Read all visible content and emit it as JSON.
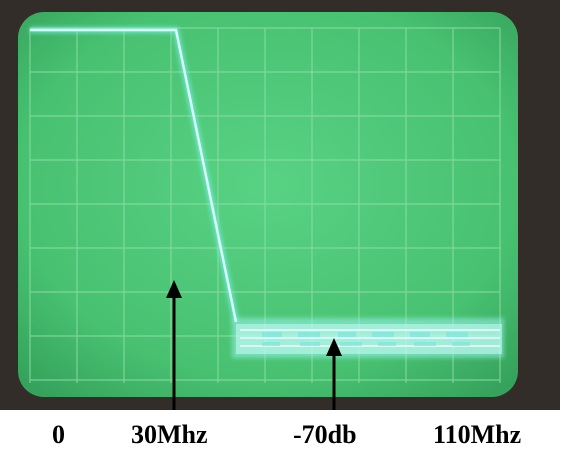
{
  "labels": {
    "origin": "0",
    "cutoff": "30Mhz",
    "attenuation": "-70db",
    "max_freq": "110Mhz"
  },
  "colors": {
    "screen": "#4cc777",
    "screen_shade": "#3aa861",
    "grid": "#8fe0a7",
    "trace": "#cffcf6",
    "trace_glow": "#7ff0e8",
    "bezel": "#3b3530",
    "arrow": "#000000"
  },
  "scope": {
    "grid_columns": 10,
    "grid_rows": 8
  }
}
